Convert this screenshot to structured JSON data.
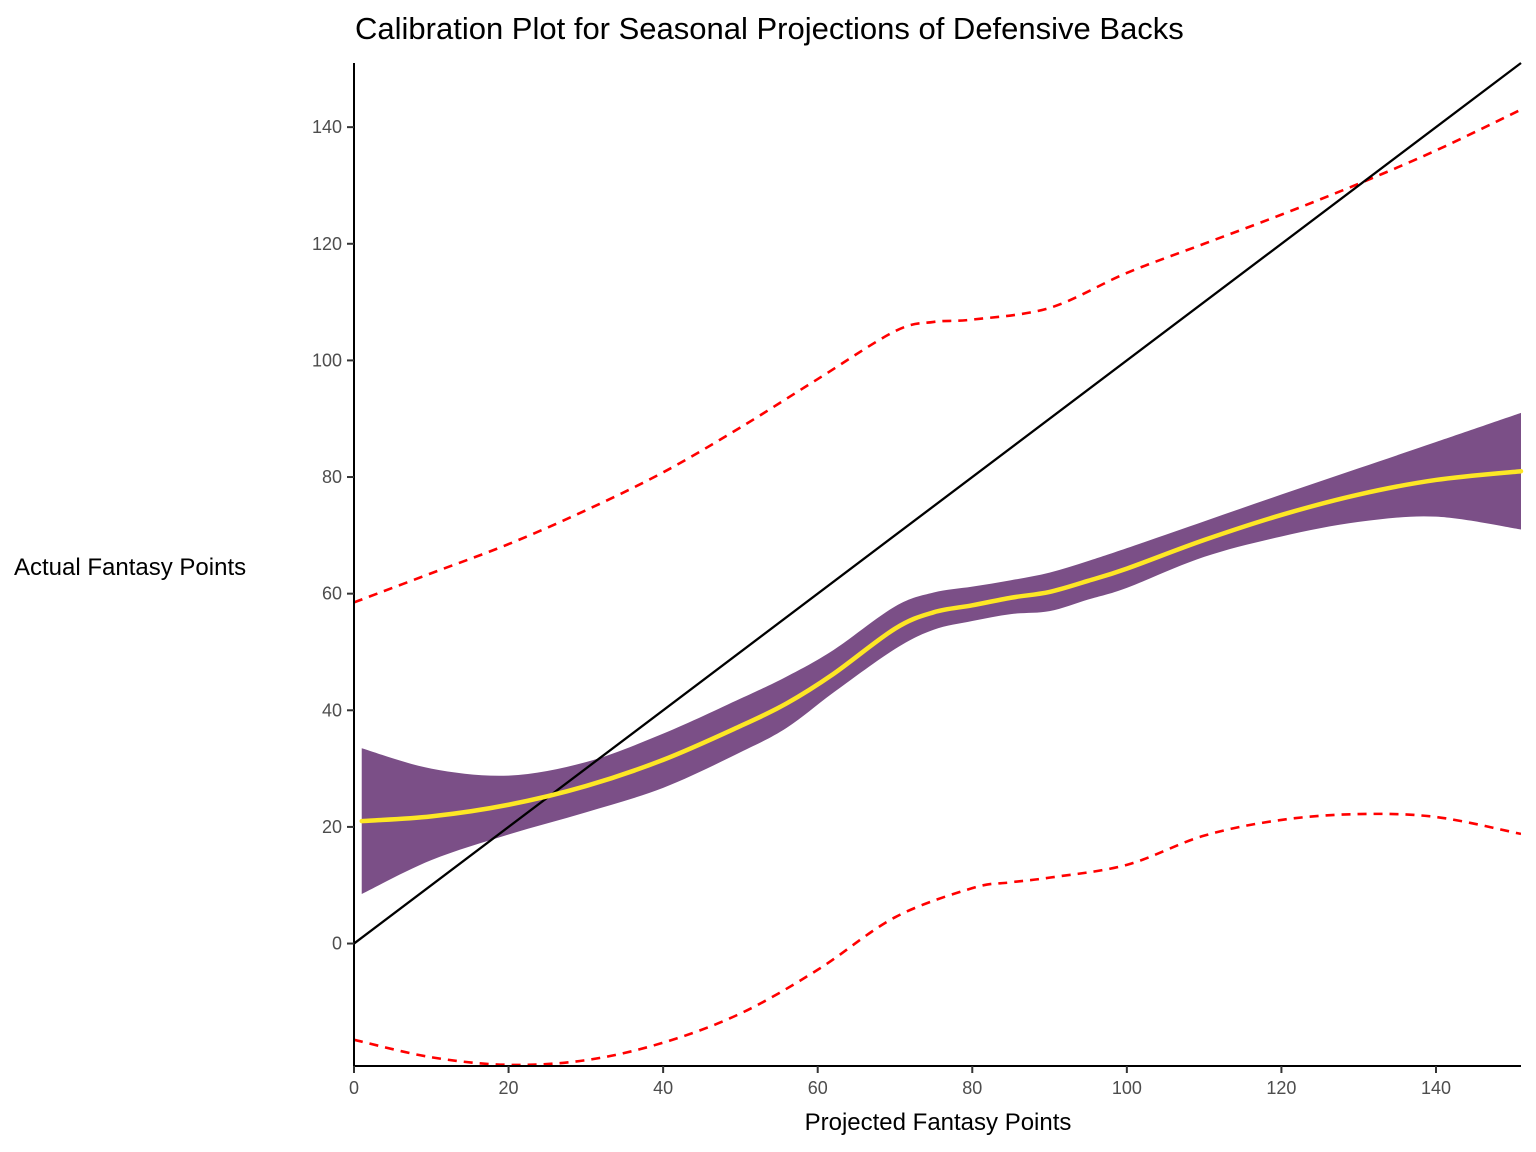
{
  "chart_data": {
    "type": "line",
    "title": "Calibration Plot for Seasonal Projections of Defensive Backs",
    "xlabel": "Projected Fantasy Points",
    "ylabel": "Actual Fantasy Points",
    "xlim": [
      0,
      151
    ],
    "ylim": [
      -21,
      151
    ],
    "x_ticks": [
      0,
      20,
      40,
      60,
      80,
      100,
      120,
      140
    ],
    "y_ticks": [
      0,
      20,
      40,
      60,
      80,
      100,
      120,
      140
    ],
    "grid": false,
    "legend": "none",
    "colors": {
      "smooth": "#FDE725",
      "band": "#7B4F87",
      "reference": "#000000",
      "interval": "#FF0000"
    },
    "series": [
      {
        "kind": "smooth",
        "x": [
          1,
          10,
          20,
          30,
          40,
          50,
          56,
          62,
          70,
          75,
          80,
          85,
          90,
          95,
          100,
          110,
          120,
          130,
          140,
          151
        ],
        "y": [
          21,
          21.8,
          23.8,
          27,
          31.5,
          37.3,
          41.2,
          46.2,
          54,
          56.8,
          58,
          59.3,
          60.3,
          62.2,
          64.3,
          69.2,
          73.5,
          77,
          79.5,
          81
        ]
      },
      {
        "kind": "band",
        "x": [
          1,
          10,
          20,
          30,
          40,
          50,
          56,
          62,
          70,
          75,
          80,
          85,
          90,
          95,
          100,
          110,
          120,
          130,
          140,
          151
        ],
        "lower": [
          8.5,
          14.3,
          18.7,
          22.5,
          26.7,
          32.8,
          37,
          43,
          50.5,
          53.8,
          55.3,
          56.5,
          57,
          59,
          61,
          66.3,
          69.8,
          72.3,
          73.2,
          71
        ],
        "upper": [
          33.5,
          30,
          28.8,
          31.1,
          36,
          42,
          45.8,
          50.3,
          57.8,
          60.2,
          61.2,
          62.3,
          63.6,
          65.6,
          67.8,
          72.4,
          77,
          81.5,
          86,
          91
        ]
      },
      {
        "kind": "reference",
        "x": [
          0,
          151
        ],
        "y": [
          0,
          151
        ]
      },
      {
        "kind": "upper-interval",
        "x": [
          0,
          10,
          20,
          30,
          40,
          50,
          60,
          70,
          75,
          80,
          90,
          100,
          110,
          120,
          130,
          140,
          151
        ],
        "y": [
          58.5,
          63.5,
          68.5,
          74.3,
          80.8,
          88.5,
          96.8,
          105,
          106.6,
          107,
          109,
          115,
          120,
          125,
          130.3,
          136,
          143
        ]
      },
      {
        "kind": "lower-interval",
        "x": [
          0,
          10,
          20,
          30,
          40,
          50,
          60,
          70,
          80,
          85,
          90,
          100,
          110,
          120,
          130,
          140,
          151
        ],
        "y": [
          -16.5,
          -19.5,
          -20.8,
          -20,
          -17,
          -12,
          -4.5,
          4.5,
          9.5,
          10.5,
          11.3,
          13.5,
          18.5,
          21.2,
          22.2,
          21.7,
          18.8
        ]
      }
    ]
  }
}
